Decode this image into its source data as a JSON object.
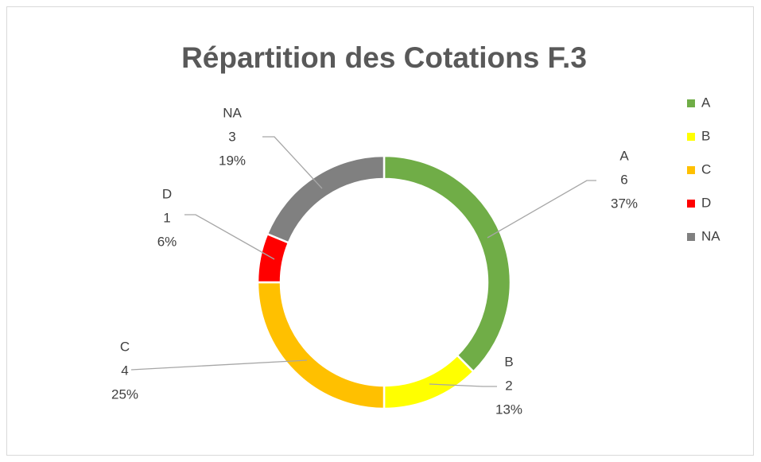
{
  "chart_data": {
    "type": "donut",
    "title": "Répartition des Cotations F.3",
    "categories": [
      "A",
      "B",
      "C",
      "D",
      "NA"
    ],
    "values": [
      6,
      2,
      4,
      1,
      3
    ],
    "percent_labels": [
      "37%",
      "13%",
      "25%",
      "6%",
      "19%"
    ],
    "colors": [
      "#70ad47",
      "#ffff00",
      "#ffc000",
      "#ff0000",
      "#808080"
    ],
    "legend": "right"
  }
}
